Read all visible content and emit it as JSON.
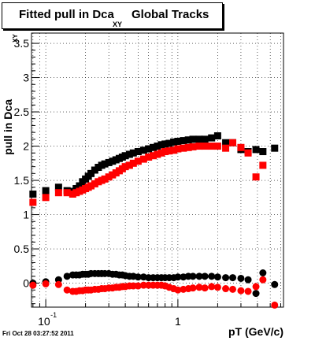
{
  "footer": "Fri Oct 28 03:27:52 2011",
  "chart_data": {
    "type": "scatter",
    "title": "Fitted pull in Dca",
    "title_subscript": "XY",
    "title_suffix": "Global Tracks",
    "xlabel": "pT (GeV/c)",
    "ylabel": "pull in Dca",
    "ylabel_subscript": "XY",
    "xscale": "log",
    "xlim": [
      0.078,
      6.3
    ],
    "ylim": [
      -0.35,
      3.65
    ],
    "x_tick_labels": [
      {
        "value": 0.1,
        "base": "10",
        "exp": "-1"
      },
      {
        "value": 1,
        "label": "1"
      }
    ],
    "y_ticks": [
      0,
      0.5,
      1,
      1.5,
      2,
      2.5,
      3,
      3.5
    ],
    "y_tick_labels": [
      "0",
      "0.5",
      "1",
      "1.5",
      "2",
      "2.5",
      "3",
      "3.5"
    ],
    "grid": true,
    "series": [
      {
        "color": "#000000",
        "marker": "square",
        "points": [
          [
            0.08,
            1.3
          ],
          [
            0.1,
            1.35
          ],
          [
            0.125,
            1.4
          ],
          [
            0.145,
            1.35
          ],
          [
            0.16,
            1.34
          ],
          [
            0.17,
            1.38
          ],
          [
            0.18,
            1.42
          ],
          [
            0.19,
            1.48
          ],
          [
            0.2,
            1.52
          ],
          [
            0.21,
            1.56
          ],
          [
            0.22,
            1.6
          ],
          [
            0.235,
            1.65
          ],
          [
            0.25,
            1.69
          ],
          [
            0.265,
            1.72
          ],
          [
            0.28,
            1.74
          ],
          [
            0.3,
            1.76
          ],
          [
            0.32,
            1.78
          ],
          [
            0.34,
            1.8
          ],
          [
            0.36,
            1.82
          ],
          [
            0.38,
            1.84
          ],
          [
            0.4,
            1.86
          ],
          [
            0.43,
            1.88
          ],
          [
            0.46,
            1.9
          ],
          [
            0.5,
            1.92
          ],
          [
            0.55,
            1.94
          ],
          [
            0.6,
            1.96
          ],
          [
            0.65,
            1.98
          ],
          [
            0.7,
            2.0
          ],
          [
            0.75,
            2.02
          ],
          [
            0.8,
            2.03
          ],
          [
            0.86,
            2.04
          ],
          [
            0.93,
            2.06
          ],
          [
            1.0,
            2.07
          ],
          [
            1.1,
            2.08
          ],
          [
            1.2,
            2.09
          ],
          [
            1.3,
            2.1
          ],
          [
            1.45,
            2.1
          ],
          [
            1.6,
            2.1
          ],
          [
            1.8,
            2.12
          ],
          [
            2.0,
            2.15
          ],
          [
            2.3,
            2.05
          ],
          [
            2.6,
            2.05
          ],
          [
            3.0,
            1.95
          ],
          [
            3.4,
            1.92
          ],
          [
            3.9,
            1.95
          ],
          [
            4.4,
            1.92
          ],
          [
            5.4,
            1.97
          ]
        ]
      },
      {
        "color": "#ff0000",
        "marker": "square",
        "points": [
          [
            0.08,
            1.18
          ],
          [
            0.1,
            1.25
          ],
          [
            0.125,
            1.32
          ],
          [
            0.145,
            1.32
          ],
          [
            0.16,
            1.3
          ],
          [
            0.17,
            1.32
          ],
          [
            0.18,
            1.34
          ],
          [
            0.19,
            1.36
          ],
          [
            0.2,
            1.38
          ],
          [
            0.21,
            1.4
          ],
          [
            0.22,
            1.42
          ],
          [
            0.235,
            1.45
          ],
          [
            0.25,
            1.48
          ],
          [
            0.265,
            1.5
          ],
          [
            0.28,
            1.52
          ],
          [
            0.3,
            1.55
          ],
          [
            0.32,
            1.58
          ],
          [
            0.34,
            1.61
          ],
          [
            0.36,
            1.64
          ],
          [
            0.38,
            1.67
          ],
          [
            0.4,
            1.7
          ],
          [
            0.43,
            1.72
          ],
          [
            0.46,
            1.75
          ],
          [
            0.5,
            1.78
          ],
          [
            0.55,
            1.81
          ],
          [
            0.6,
            1.84
          ],
          [
            0.65,
            1.86
          ],
          [
            0.7,
            1.88
          ],
          [
            0.75,
            1.9
          ],
          [
            0.8,
            1.92
          ],
          [
            0.86,
            1.93
          ],
          [
            0.93,
            1.94
          ],
          [
            1.0,
            1.96
          ],
          [
            1.1,
            1.97
          ],
          [
            1.2,
            1.98
          ],
          [
            1.3,
            1.99
          ],
          [
            1.45,
            2.0
          ],
          [
            1.6,
            2.0
          ],
          [
            1.8,
            2.0
          ],
          [
            2.0,
            2.0
          ],
          [
            2.3,
            1.97
          ],
          [
            2.6,
            2.05
          ],
          [
            3.0,
            1.98
          ],
          [
            3.4,
            1.9
          ],
          [
            3.9,
            1.55
          ],
          [
            4.4,
            1.72
          ],
          [
            5.4,
            null
          ]
        ]
      },
      {
        "color": "#000000",
        "marker": "circle",
        "points": [
          [
            0.08,
            0.0
          ],
          [
            0.1,
            0.02
          ],
          [
            0.125,
            0.05
          ],
          [
            0.145,
            0.1
          ],
          [
            0.16,
            0.12
          ],
          [
            0.17,
            0.12
          ],
          [
            0.18,
            0.12
          ],
          [
            0.19,
            0.13
          ],
          [
            0.2,
            0.13
          ],
          [
            0.21,
            0.13
          ],
          [
            0.22,
            0.14
          ],
          [
            0.235,
            0.14
          ],
          [
            0.25,
            0.14
          ],
          [
            0.265,
            0.14
          ],
          [
            0.28,
            0.14
          ],
          [
            0.3,
            0.14
          ],
          [
            0.32,
            0.13
          ],
          [
            0.34,
            0.13
          ],
          [
            0.36,
            0.12
          ],
          [
            0.38,
            0.12
          ],
          [
            0.4,
            0.11
          ],
          [
            0.43,
            0.1
          ],
          [
            0.46,
            0.1
          ],
          [
            0.5,
            0.09
          ],
          [
            0.55,
            0.09
          ],
          [
            0.6,
            0.08
          ],
          [
            0.65,
            0.08
          ],
          [
            0.7,
            0.08
          ],
          [
            0.75,
            0.08
          ],
          [
            0.8,
            0.08
          ],
          [
            0.86,
            0.08
          ],
          [
            0.93,
            0.08
          ],
          [
            1.0,
            0.09
          ],
          [
            1.1,
            0.09
          ],
          [
            1.2,
            0.1
          ],
          [
            1.3,
            0.1
          ],
          [
            1.45,
            0.1
          ],
          [
            1.6,
            0.1
          ],
          [
            1.8,
            0.1
          ],
          [
            2.0,
            0.09
          ],
          [
            2.3,
            0.08
          ],
          [
            2.6,
            0.08
          ],
          [
            3.0,
            0.07
          ],
          [
            3.4,
            0.05
          ],
          [
            3.9,
            -0.15
          ],
          [
            4.4,
            0.15
          ],
          [
            5.4,
            -0.02
          ]
        ]
      },
      {
        "color": "#ff0000",
        "marker": "circle",
        "points": [
          [
            0.08,
            -0.03
          ],
          [
            0.1,
            -0.01
          ],
          [
            0.125,
            -0.02
          ],
          [
            0.145,
            -0.1
          ],
          [
            0.16,
            -0.12
          ],
          [
            0.17,
            -0.12
          ],
          [
            0.18,
            -0.11
          ],
          [
            0.19,
            -0.11
          ],
          [
            0.2,
            -0.1
          ],
          [
            0.21,
            -0.1
          ],
          [
            0.22,
            -0.1
          ],
          [
            0.235,
            -0.09
          ],
          [
            0.25,
            -0.09
          ],
          [
            0.265,
            -0.08
          ],
          [
            0.28,
            -0.08
          ],
          [
            0.3,
            -0.07
          ],
          [
            0.32,
            -0.07
          ],
          [
            0.34,
            -0.06
          ],
          [
            0.36,
            -0.06
          ],
          [
            0.38,
            -0.05
          ],
          [
            0.4,
            -0.05
          ],
          [
            0.43,
            -0.04
          ],
          [
            0.46,
            -0.04
          ],
          [
            0.5,
            -0.04
          ],
          [
            0.55,
            -0.03
          ],
          [
            0.6,
            -0.03
          ],
          [
            0.65,
            -0.03
          ],
          [
            0.7,
            -0.03
          ],
          [
            0.75,
            -0.03
          ],
          [
            0.8,
            -0.04
          ],
          [
            0.86,
            -0.06
          ],
          [
            0.93,
            -0.08
          ],
          [
            1.0,
            -0.1
          ],
          [
            1.1,
            -0.09
          ],
          [
            1.2,
            -0.08
          ],
          [
            1.3,
            -0.07
          ],
          [
            1.45,
            -0.06
          ],
          [
            1.6,
            -0.07
          ],
          [
            1.8,
            -0.05
          ],
          [
            2.0,
            -0.06
          ],
          [
            2.3,
            -0.08
          ],
          [
            2.6,
            -0.09
          ],
          [
            3.0,
            -0.11
          ],
          [
            3.4,
            -0.12
          ],
          [
            3.9,
            -0.05
          ],
          [
            4.4,
            0.05
          ],
          [
            5.4,
            -0.32
          ]
        ]
      }
    ]
  }
}
